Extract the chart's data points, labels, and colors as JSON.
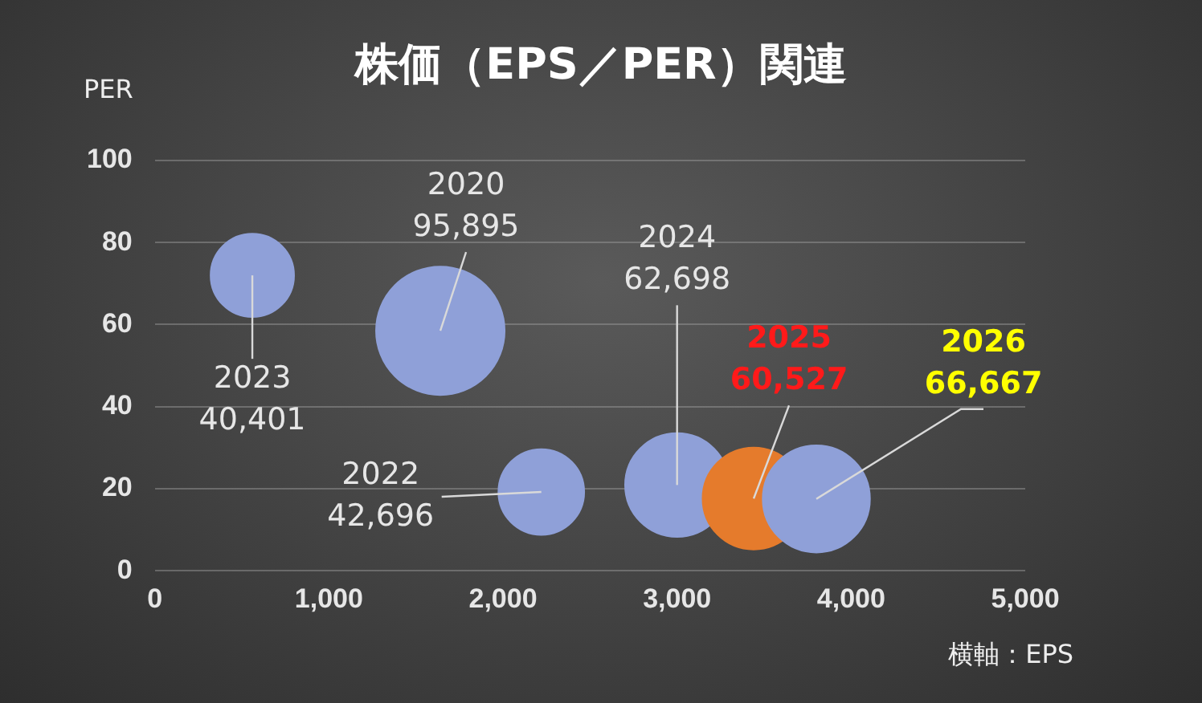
{
  "chart_data": {
    "type": "bubble",
    "title": "株価（EPS／PER）関連",
    "ylabel": "PER",
    "xlabel": "横軸：EPS",
    "xlim": [
      0,
      5000
    ],
    "xticks": [
      0,
      {
        "value": 1000,
        "label": "1,000"
      },
      {
        "value": 2000,
        "label": "2,000"
      },
      {
        "value": 3000,
        "label": "3,000"
      },
      {
        "value": 4000,
        "label": "4,000"
      },
      {
        "value": 5000,
        "label": "5,000"
      }
    ],
    "ylim": [
      0,
      100
    ],
    "yticks": [
      0,
      20,
      40,
      60,
      80,
      100
    ],
    "grid": "y",
    "legend": false,
    "series": [
      {
        "colors": [
          "#8fa0d8",
          "#8fa0d8",
          "#8fa0d8",
          "#8fa0d8",
          "#e57b2c",
          "#8fa0d8"
        ],
        "x": [
          1640,
          2220,
          560,
          3000,
          3440,
          3800
        ],
        "values": [
          58.5,
          19.2,
          72,
          20.9,
          17.6,
          17.5
        ],
        "sizes": [
          1,
          0.445,
          0.421,
          0.654,
          0.631,
          0.695
        ]
      }
    ],
    "annotations": [
      {
        "text": "2020\n95,895",
        "x": 1640,
        "y": 58.5
      },
      {
        "text": "2022\n42,696",
        "x": 2220,
        "y": 19.2
      },
      {
        "text": "2023\n40,401",
        "x": 560,
        "y": 72
      },
      {
        "text": "2024\n62,698",
        "x": 3000,
        "y": 20.9
      },
      {
        "text": "2025\n60,527",
        "x": 3440,
        "y": 17.6
      },
      {
        "text": "2026\n66,667",
        "x": 3800,
        "y": 17.5
      }
    ]
  }
}
